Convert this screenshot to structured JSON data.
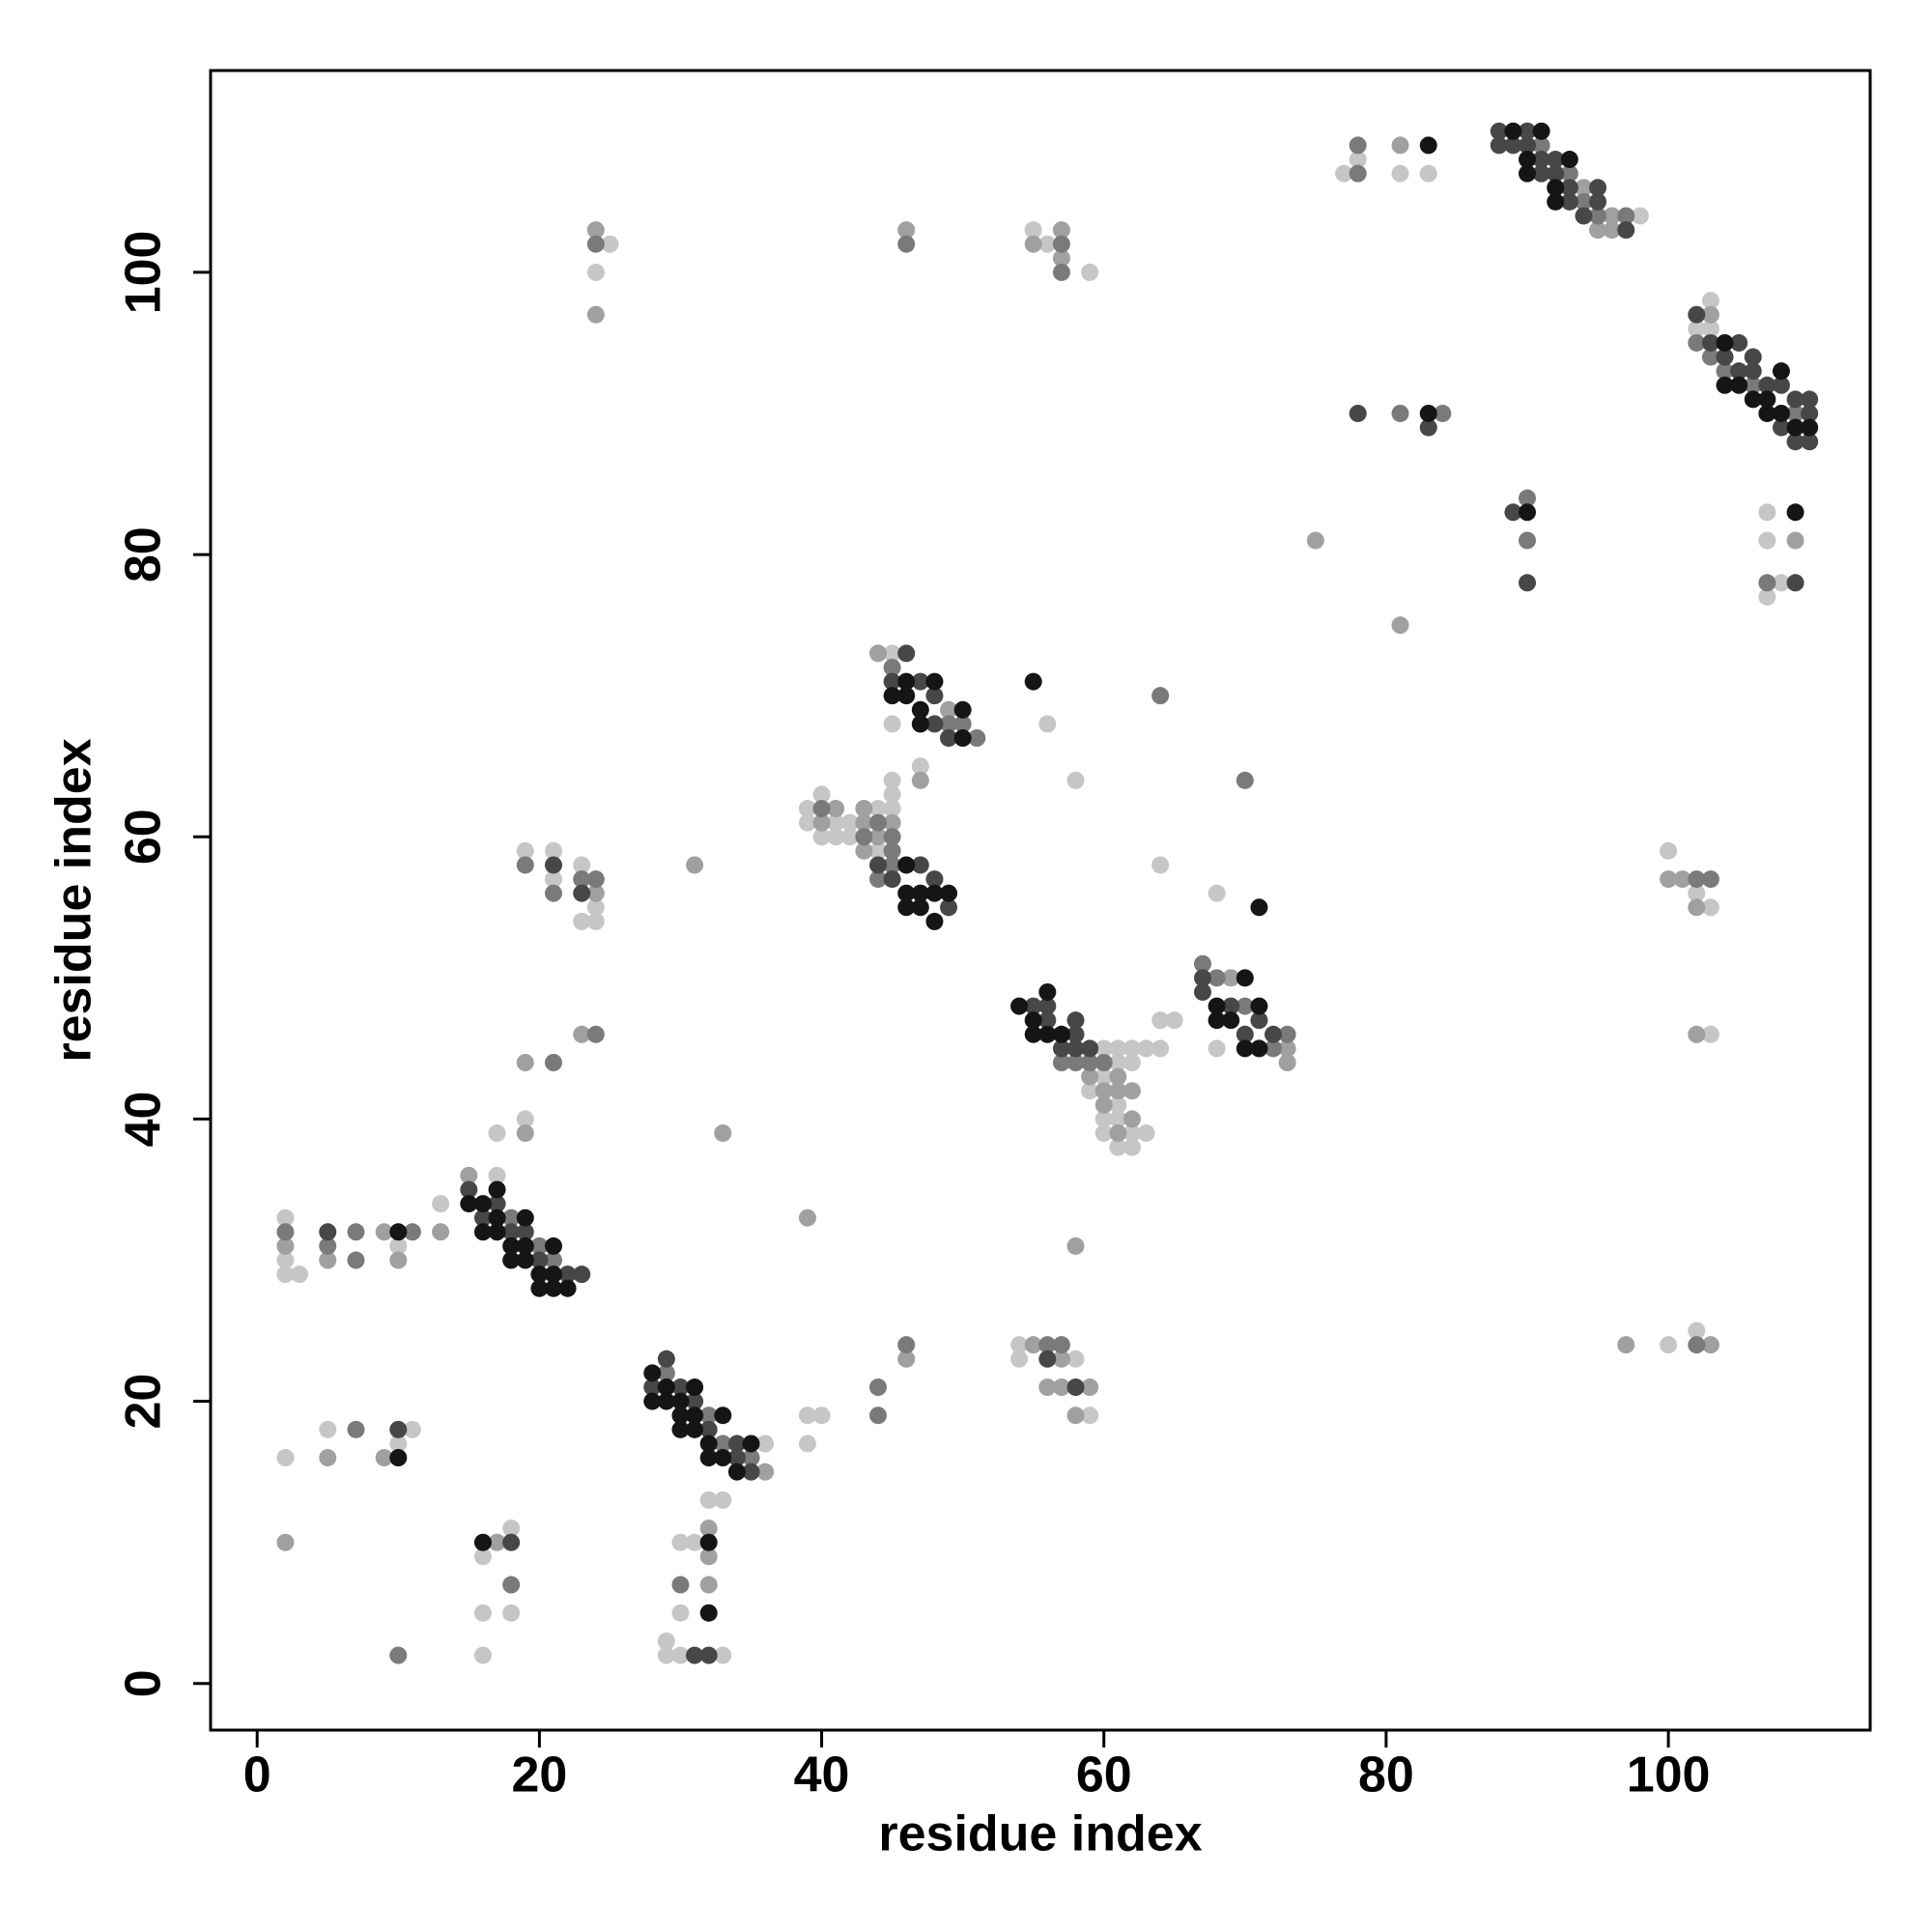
{
  "chart_data": {
    "type": "scatter",
    "xlabel": "residue index",
    "ylabel": "residue index",
    "xlim": [
      -3.3,
      114.3
    ],
    "ylim": [
      -3.3,
      114.3
    ],
    "xticks": [
      0,
      20,
      40,
      60,
      80,
      100
    ],
    "yticks": [
      0,
      20,
      40,
      60,
      80,
      100
    ],
    "series": [
      {
        "color": "#c6c6c6",
        "x": [
          2,
          2,
          2,
          3,
          10,
          13,
          17,
          17,
          19,
          19,
          21,
          21,
          23,
          23,
          24,
          24,
          24,
          25,
          2,
          5,
          10,
          11,
          16,
          18,
          16,
          18,
          16,
          36,
          39,
          40,
          39,
          33,
          32,
          30,
          31,
          30,
          29,
          29,
          30,
          33,
          39,
          39,
          40,
          40,
          41,
          41,
          42,
          42,
          44,
          44,
          45,
          45,
          45,
          47,
          45,
          45,
          56,
          58,
          64,
          68,
          59,
          60,
          60,
          60,
          60,
          61,
          61,
          61,
          61,
          61,
          62,
          62,
          62,
          62,
          63,
          63,
          64,
          64,
          65,
          68,
          54,
          54,
          58,
          59,
          55,
          56,
          59,
          77,
          78,
          81,
          83,
          98,
          102,
          103,
          103,
          107,
          107,
          107,
          108,
          100,
          102,
          103,
          103,
          100,
          102
        ],
        "y": [
          33,
          30,
          29,
          29,
          31,
          34,
          36,
          39,
          40,
          59,
          59,
          57,
          58,
          54,
          55,
          54,
          100,
          102,
          16,
          18,
          17,
          18,
          9,
          11,
          5,
          5,
          2,
          17,
          19,
          19,
          17,
          13,
          13,
          10,
          10,
          5,
          3,
          2,
          2,
          2,
          62,
          61,
          63,
          60,
          61,
          60,
          61,
          60,
          62,
          59,
          62,
          64,
          63,
          65,
          73,
          68,
          68,
          64,
          58,
          56,
          42,
          45,
          43,
          40,
          39,
          45,
          44,
          41,
          40,
          38,
          45,
          44,
          39,
          38,
          45,
          39,
          45,
          47,
          47,
          45,
          24,
          23,
          23,
          19,
          103,
          102,
          100,
          107,
          108,
          107,
          107,
          104,
          96,
          98,
          96,
          83,
          81,
          77,
          78,
          59,
          56,
          55,
          46,
          24,
          25
        ]
      },
      {
        "color": "#a0a0a0",
        "x": [
          2,
          5,
          9,
          10,
          13,
          15,
          19,
          19,
          23,
          24,
          24,
          24,
          5,
          9,
          2,
          17,
          32,
          32,
          32,
          36,
          33,
          39,
          31,
          46,
          40,
          41,
          43,
          43,
          43,
          44,
          45,
          47,
          44,
          49,
          59,
          60,
          60,
          61,
          61,
          61,
          62,
          62,
          69,
          73,
          73,
          55,
          57,
          56,
          57,
          58,
          59,
          58,
          46,
          55,
          57,
          57,
          81,
          94,
          95,
          96,
          96,
          103,
          75,
          81,
          109,
          100,
          101,
          102,
          102,
          97,
          103
        ],
        "y": [
          31,
          30,
          32,
          30,
          32,
          36,
          44,
          39,
          46,
          56,
          103,
          97,
          16,
          16,
          10,
          10,
          11,
          9,
          7,
          15,
          39,
          33,
          58,
          23,
          61,
          62,
          62,
          61,
          59,
          60,
          61,
          64,
          73,
          69,
          43,
          42,
          41,
          43,
          42,
          39,
          42,
          40,
          50,
          45,
          44,
          24,
          23,
          21,
          21,
          19,
          21,
          31,
          103,
          102,
          103,
          101,
          109,
          106,
          103,
          104,
          103,
          97,
          81,
          75,
          81,
          57,
          57,
          55,
          46,
          24,
          24
        ]
      },
      {
        "color": "#7a7a7a",
        "x": [
          2,
          5,
          7,
          7,
          11,
          18,
          20,
          21,
          21,
          19,
          21,
          23,
          24,
          24,
          24,
          7,
          18,
          10,
          29,
          32,
          33,
          35,
          30,
          44,
          44,
          46,
          40,
          43,
          44,
          45,
          45,
          45,
          44,
          45,
          49,
          50,
          51,
          64,
          70,
          57,
          58,
          59,
          60,
          67,
          68,
          70,
          72,
          73,
          56,
          57,
          46,
          57,
          57,
          78,
          78,
          91,
          93,
          94,
          95,
          97,
          102,
          103,
          104,
          106,
          109,
          81,
          84,
          90,
          90,
          107,
          102,
          103,
          102
        ],
        "y": [
          32,
          31,
          32,
          30,
          32,
          33,
          31,
          30,
          44,
          58,
          56,
          57,
          57,
          46,
          102,
          18,
          7,
          2,
          22,
          19,
          17,
          16,
          7,
          21,
          19,
          24,
          62,
          60,
          61,
          60,
          59,
          58,
          57,
          72,
          68,
          68,
          67,
          70,
          64,
          44,
          44,
          44,
          44,
          51,
          50,
          48,
          45,
          46,
          24,
          24,
          102,
          102,
          100,
          109,
          107,
          109,
          107,
          105,
          104,
          104,
          95,
          94,
          93,
          92,
          90,
          90,
          90,
          84,
          81,
          78,
          57,
          57,
          24
        ]
      },
      {
        "color": "#474747",
        "x": [
          5,
          15,
          16,
          17,
          18,
          19,
          20,
          22,
          23,
          21,
          23,
          10,
          18,
          28,
          29,
          30,
          31,
          32,
          34,
          34,
          35,
          31,
          32,
          44,
          45,
          47,
          48,
          49,
          45,
          46,
          47,
          48,
          48,
          49,
          55,
          56,
          56,
          57,
          58,
          58,
          58,
          59,
          67,
          67,
          69,
          70,
          71,
          72,
          56,
          58,
          88,
          88,
          89,
          90,
          90,
          91,
          91,
          92,
          92,
          93,
          93,
          94,
          95,
          95,
          97,
          102,
          103,
          104,
          105,
          105,
          106,
          106,
          107,
          108,
          108,
          109,
          109,
          110,
          110,
          110,
          78,
          83,
          89,
          90,
          109
        ],
        "y": [
          32,
          35,
          33,
          34,
          32,
          32,
          30,
          29,
          29,
          58,
          56,
          18,
          10,
          21,
          23,
          21,
          20,
          18,
          17,
          16,
          15,
          2,
          2,
          58,
          57,
          58,
          57,
          55,
          71,
          73,
          71,
          70,
          68,
          67,
          48,
          48,
          47,
          45,
          47,
          46,
          45,
          45,
          50,
          49,
          48,
          46,
          47,
          46,
          23,
          21,
          110,
          109,
          109,
          110,
          109,
          108,
          107,
          108,
          107,
          106,
          105,
          104,
          106,
          105,
          103,
          97,
          95,
          94,
          95,
          93,
          94,
          93,
          92,
          92,
          89,
          91,
          88,
          91,
          90,
          88,
          90,
          89,
          83,
          78,
          78
        ]
      },
      {
        "color": "#151515",
        "x": [
          10,
          15,
          16,
          16,
          17,
          17,
          17,
          18,
          18,
          19,
          19,
          19,
          20,
          20,
          21,
          21,
          21,
          22,
          10,
          16,
          28,
          28,
          29,
          29,
          30,
          30,
          30,
          31,
          31,
          31,
          32,
          32,
          33,
          33,
          34,
          35,
          32,
          32,
          46,
          46,
          46,
          47,
          47,
          48,
          48,
          49,
          45,
          46,
          46,
          47,
          47,
          48,
          50,
          50,
          55,
          71,
          54,
          55,
          55,
          56,
          56,
          57,
          68,
          68,
          69,
          70,
          70,
          71,
          71,
          83,
          89,
          90,
          91,
          90,
          92,
          93,
          92,
          104,
          104,
          105,
          106,
          107,
          107,
          108,
          108,
          109,
          110,
          83,
          90,
          109
        ],
        "y": [
          32,
          34,
          34,
          32,
          35,
          33,
          32,
          31,
          30,
          33,
          31,
          30,
          29,
          28,
          31,
          29,
          28,
          28,
          16,
          10,
          22,
          20,
          21,
          20,
          20,
          19,
          18,
          21,
          19,
          18,
          17,
          16,
          19,
          16,
          15,
          17,
          10,
          5,
          58,
          56,
          55,
          56,
          55,
          56,
          54,
          56,
          70,
          71,
          70,
          69,
          68,
          71,
          69,
          67,
          71,
          55,
          48,
          47,
          46,
          49,
          46,
          46,
          48,
          47,
          47,
          50,
          45,
          48,
          45,
          109,
          110,
          108,
          110,
          107,
          106,
          108,
          105,
          95,
          92,
          92,
          91,
          91,
          90,
          93,
          90,
          89,
          89,
          90,
          83,
          83
        ]
      }
    ]
  }
}
